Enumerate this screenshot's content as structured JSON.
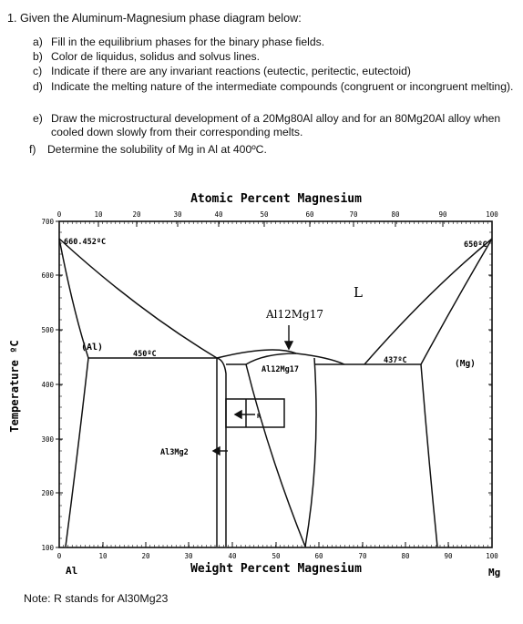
{
  "question": {
    "title": "1. Given the Aluminum-Magnesium phase diagram below:",
    "items": [
      {
        "label": "a)",
        "text": "Fill in the equilibrium phases for the binary phase fields."
      },
      {
        "label": "b)",
        "text": "Color de liquidus, solidus and solvus lines."
      },
      {
        "label": "c)",
        "text": "Indicate if there are any invariant reactions (eutectic, peritectic, eutectoid)"
      },
      {
        "label": "d)",
        "text": "Indicate the melting nature of the intermediate compounds (congruent or incongruent melting)."
      },
      {
        "label": "e)",
        "text": "Draw the microstructural development of a 20Mg80Al alloy and for an 80Mg20Al alloy when cooled down slowly from their corresponding melts."
      },
      {
        "label": "f)",
        "text": "Determine the solubility of Mg in Al at 400ºC."
      }
    ]
  },
  "diagram": {
    "top_axis_title": "Atomic Percent Magnesium",
    "top_ticks": [
      "0",
      "10",
      "20",
      "30",
      "40",
      "50",
      "60",
      "70",
      "80",
      "90",
      "100"
    ],
    "bottom_axis_title": "Weight Percent Magnesium",
    "bottom_ticks": [
      "0",
      "10",
      "20",
      "30",
      "40",
      "50",
      "60",
      "70",
      "80",
      "90",
      "100"
    ],
    "y_axis_title": "Temperature ºC",
    "y_ticks": [
      "700",
      "600",
      "500",
      "400",
      "300",
      "200",
      "100"
    ],
    "left_element": "Al",
    "right_element": "Mg",
    "labels": {
      "al_melting": "660.452ºC",
      "mg_melting": "650ºC",
      "liquid": "L",
      "al_phase": "(Al)",
      "mg_phase": "(Mg)",
      "eutectic_left": "450ºC",
      "eutectic_right": "437ºC",
      "compound_callout": "Al12Mg17",
      "compound_field": "Al12Mg17",
      "r_phase": "R",
      "beta_phase": "Al3Mg2"
    }
  },
  "note": "Note: R stands for Al30Mg23"
}
